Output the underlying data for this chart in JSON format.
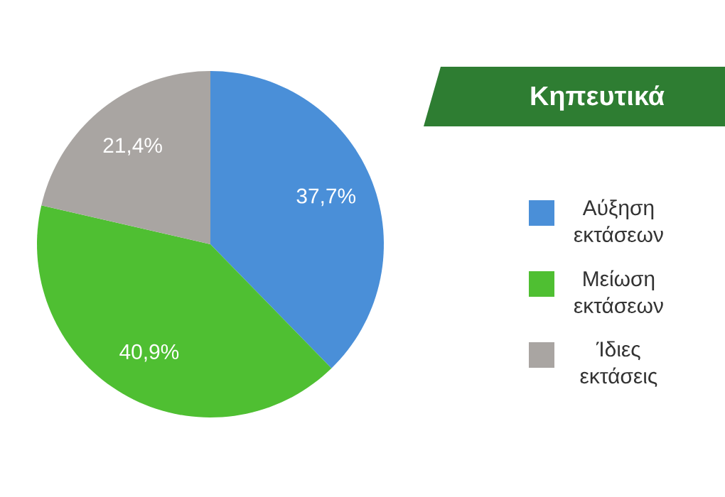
{
  "chart_data": {
    "type": "pie",
    "title": "Κηπευτικά",
    "categories": [
      "Αύξηση εκτάσεων",
      "Μείωση εκτάσεων",
      "Ίδιες εκτάσεις"
    ],
    "values": [
      37.7,
      40.9,
      21.4
    ],
    "colors": [
      "#4a8fd8",
      "#4fbf32",
      "#a9a5a2"
    ],
    "value_labels": [
      "37,7%",
      "40,9%",
      "21,4%"
    ],
    "legend": "right"
  }
}
